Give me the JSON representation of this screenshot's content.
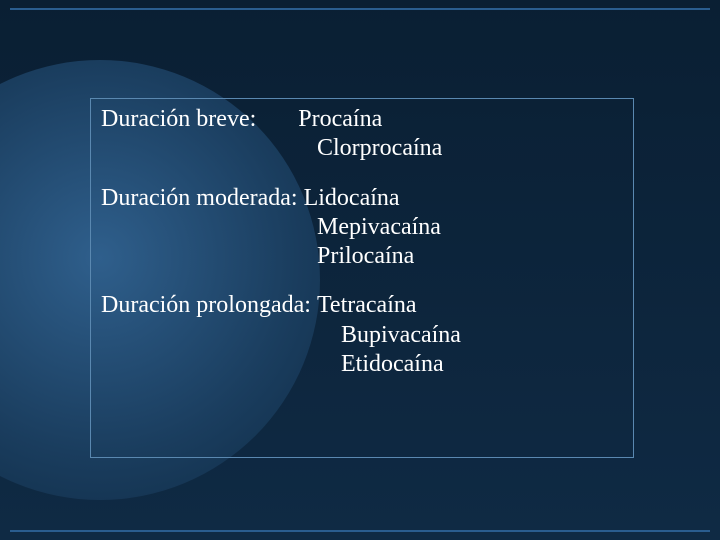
{
  "slide": {
    "background_gradient": [
      "#0a1f33",
      "#0f2a44"
    ],
    "circle_gradient": [
      "#2f5f8c",
      "#1a3d5e",
      "#0e2a44"
    ],
    "rule_color": "#2a5d8f",
    "box_border_color": "#5a88b0",
    "text_color": "#ffffff",
    "font_family": "Times New Roman",
    "font_size_pt": 24
  },
  "groups": [
    {
      "label": "Duración breve:       ",
      "items": [
        "Procaína",
        "Clorprocaína"
      ]
    },
    {
      "label": "Duración moderada: ",
      "items": [
        "Lidocaína",
        "Mepivacaína",
        "Prilocaína"
      ]
    },
    {
      "label": "Duración prolongada: ",
      "items": [
        "Tetracaína",
        "Bupivacaína",
        "Etidocaína"
      ]
    }
  ]
}
